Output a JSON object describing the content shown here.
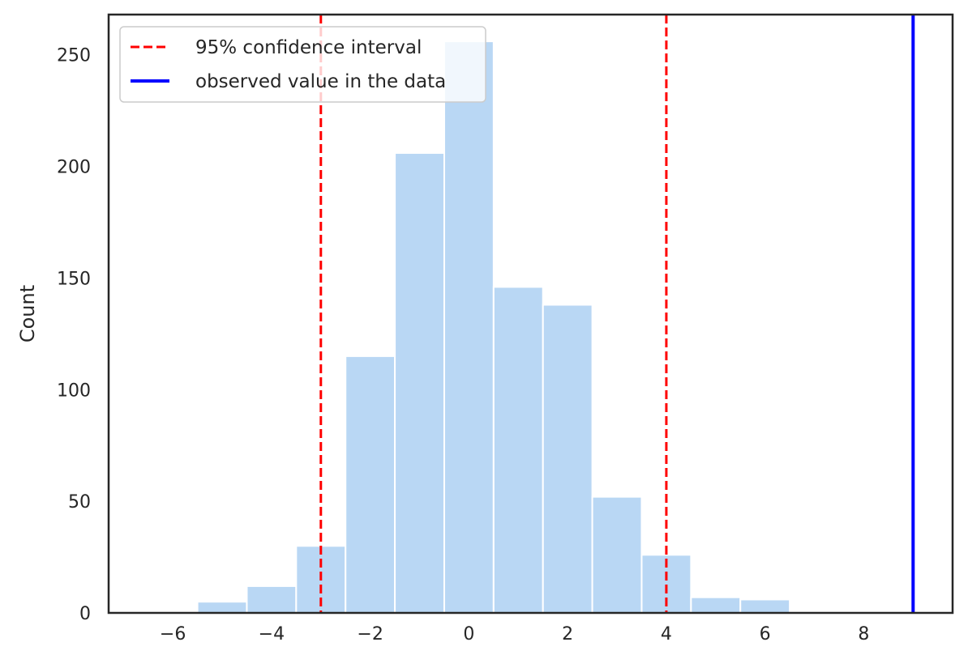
{
  "chart_data": {
    "type": "bar",
    "title": "",
    "xlabel": "",
    "ylabel": "Count",
    "xlim": [
      -7.3,
      9.8
    ],
    "ylim": [
      0,
      268
    ],
    "xticks": [
      -6,
      -4,
      -2,
      0,
      2,
      4,
      6,
      8
    ],
    "xtick_labels": [
      "−6",
      "−4",
      "−2",
      "0",
      "2",
      "4",
      "6",
      "8"
    ],
    "yticks": [
      0,
      50,
      100,
      150,
      200,
      250
    ],
    "ytick_labels": [
      "0",
      "50",
      "100",
      "150",
      "200",
      "250"
    ],
    "grid": false,
    "bin_edges": [
      -5.5,
      -4.5,
      -3.5,
      -2.5,
      -1.5,
      -0.5,
      0.5,
      1.5,
      2.5,
      3.5,
      4.5,
      5.5,
      6.5
    ],
    "counts": [
      5,
      12,
      30,
      115,
      206,
      256,
      146,
      138,
      52,
      26,
      7,
      6
    ],
    "bar_color": "#b9d7f4",
    "vlines": [
      {
        "name": "95% confidence interval",
        "x": -3,
        "color": "#ff0000",
        "style": "dashed"
      },
      {
        "name": "95% confidence interval",
        "x": 4,
        "color": "#ff0000",
        "style": "dashed"
      },
      {
        "name": "observed value in the data",
        "x": 9,
        "color": "#0000ff",
        "style": "solid"
      }
    ],
    "legend": {
      "placement": "top-left",
      "entries": [
        {
          "label": "95% confidence interval",
          "color": "#ff0000",
          "style": "dashed"
        },
        {
          "label": "observed value in the data",
          "color": "#0000ff",
          "style": "solid"
        }
      ]
    }
  }
}
